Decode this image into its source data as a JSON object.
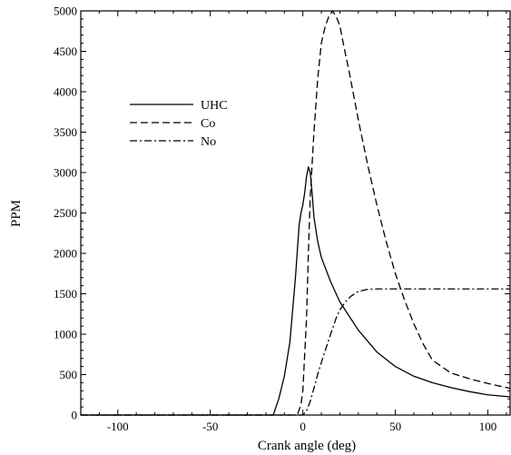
{
  "chart_data": {
    "type": "line",
    "title": "",
    "xlabel": "Crank angle (deg)",
    "ylabel": "PPM",
    "xlim": [
      -120,
      112
    ],
    "ylim": [
      0,
      5000
    ],
    "xticks": [
      -100,
      -50,
      0,
      50,
      100
    ],
    "yticks": [
      0,
      500,
      1000,
      1500,
      2000,
      2500,
      3000,
      3500,
      4000,
      4500,
      5000
    ],
    "grid": false,
    "legend": "upper-left",
    "series": [
      {
        "name": "UHC",
        "style": "solid",
        "x": [
          -120,
          -16,
          -13,
          -10,
          -7,
          -4,
          -2,
          -1,
          0,
          1,
          2,
          3,
          4,
          5,
          6,
          8,
          10,
          15,
          20,
          30,
          40,
          50,
          60,
          70,
          80,
          90,
          100,
          112
        ],
        "y": [
          0,
          0,
          200,
          480,
          900,
          1700,
          2350,
          2500,
          2600,
          2750,
          2950,
          3070,
          3000,
          2750,
          2450,
          2150,
          1950,
          1650,
          1400,
          1050,
          780,
          600,
          480,
          400,
          340,
          290,
          250,
          225
        ]
      },
      {
        "name": "Co",
        "style": "dashed",
        "x": [
          -120,
          -3,
          -1,
          0,
          1,
          2,
          3,
          4,
          5,
          6,
          8,
          10,
          12,
          14,
          16,
          18,
          20,
          22,
          25,
          30,
          35,
          40,
          45,
          50,
          55,
          60,
          65,
          70,
          80,
          90,
          100,
          112
        ],
        "y": [
          0,
          0,
          130,
          300,
          750,
          1200,
          2000,
          2700,
          3100,
          3500,
          4150,
          4600,
          4800,
          4930,
          5000,
          4930,
          4820,
          4580,
          4250,
          3650,
          3100,
          2600,
          2150,
          1750,
          1420,
          1130,
          880,
          680,
          520,
          450,
          390,
          330
        ]
      },
      {
        "name": "No",
        "style": "dashdot",
        "x": [
          -120,
          0,
          2,
          4,
          6,
          8,
          10,
          12,
          15,
          18,
          20,
          23,
          26,
          30,
          35,
          40,
          50,
          60,
          70,
          80,
          90,
          100,
          112
        ],
        "y": [
          0,
          0,
          50,
          170,
          330,
          500,
          650,
          790,
          1000,
          1200,
          1300,
          1400,
          1470,
          1530,
          1555,
          1560,
          1560,
          1560,
          1560,
          1560,
          1560,
          1560,
          1560
        ]
      }
    ]
  }
}
